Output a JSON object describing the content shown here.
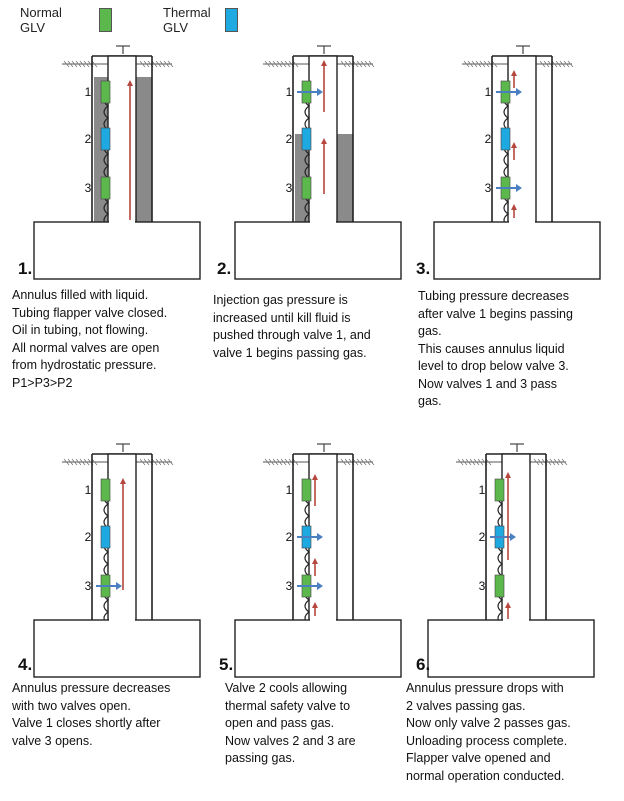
{
  "legend": {
    "normal": {
      "label_line1": "Normal",
      "label_line2": "GLV",
      "color": "#5cb84c"
    },
    "thermal": {
      "label_line1": "Thermal",
      "label_line2": "GLV",
      "color": "#1fa9e1"
    }
  },
  "colors": {
    "liquid": "#8a8a8a",
    "flow_arrow": "#b5473e",
    "gas_arrow": "#4a7fc1"
  },
  "steps": [
    {
      "number": "1.",
      "lines": [
        "Annulus filled with liquid.",
        "Tubing flapper valve closed.",
        "Oil in tubing, not flowing.",
        "All normal valves are open",
        "from hydrostatic pressure.",
        "P1>P3>P2"
      ],
      "valve_labels": [
        "1",
        "2",
        "3"
      ]
    },
    {
      "number": "2.",
      "lines": [
        "Injection gas pressure is",
        "increased until kill fluid is",
        "pushed through valve 1, and",
        "valve 1 begins passing gas."
      ],
      "valve_labels": [
        "1",
        "2",
        "3"
      ]
    },
    {
      "number": "3.",
      "lines": [
        "Tubing pressure decreases",
        "after valve 1 begins passing",
        "gas.",
        "This causes annulus liquid",
        "level to drop below valve 3.",
        "Now valves 1 and 3 pass",
        "gas."
      ],
      "valve_labels": [
        "1",
        "2",
        "3"
      ]
    },
    {
      "number": "4.",
      "lines": [
        "Annulus pressure decreases",
        "with two valves open.",
        "Valve 1 closes shortly after",
        "valve 3 opens."
      ],
      "valve_labels": [
        "1",
        "2",
        "3"
      ]
    },
    {
      "number": "5.",
      "lines": [
        "Valve 2 cools allowing",
        "thermal safety valve to",
        "open and pass gas.",
        "Now valves 2 and 3 are",
        "passing gas."
      ],
      "valve_labels": [
        "1",
        "2",
        "3"
      ]
    },
    {
      "number": "6.",
      "lines": [
        "Annulus pressure drops with",
        "2 valves passing gas.",
        "Now only valve 2 passes gas.",
        "Unloading process complete.",
        "Flapper valve opened and",
        "normal operation conducted."
      ],
      "valve_labels": [
        "1",
        "2",
        "3"
      ]
    }
  ]
}
